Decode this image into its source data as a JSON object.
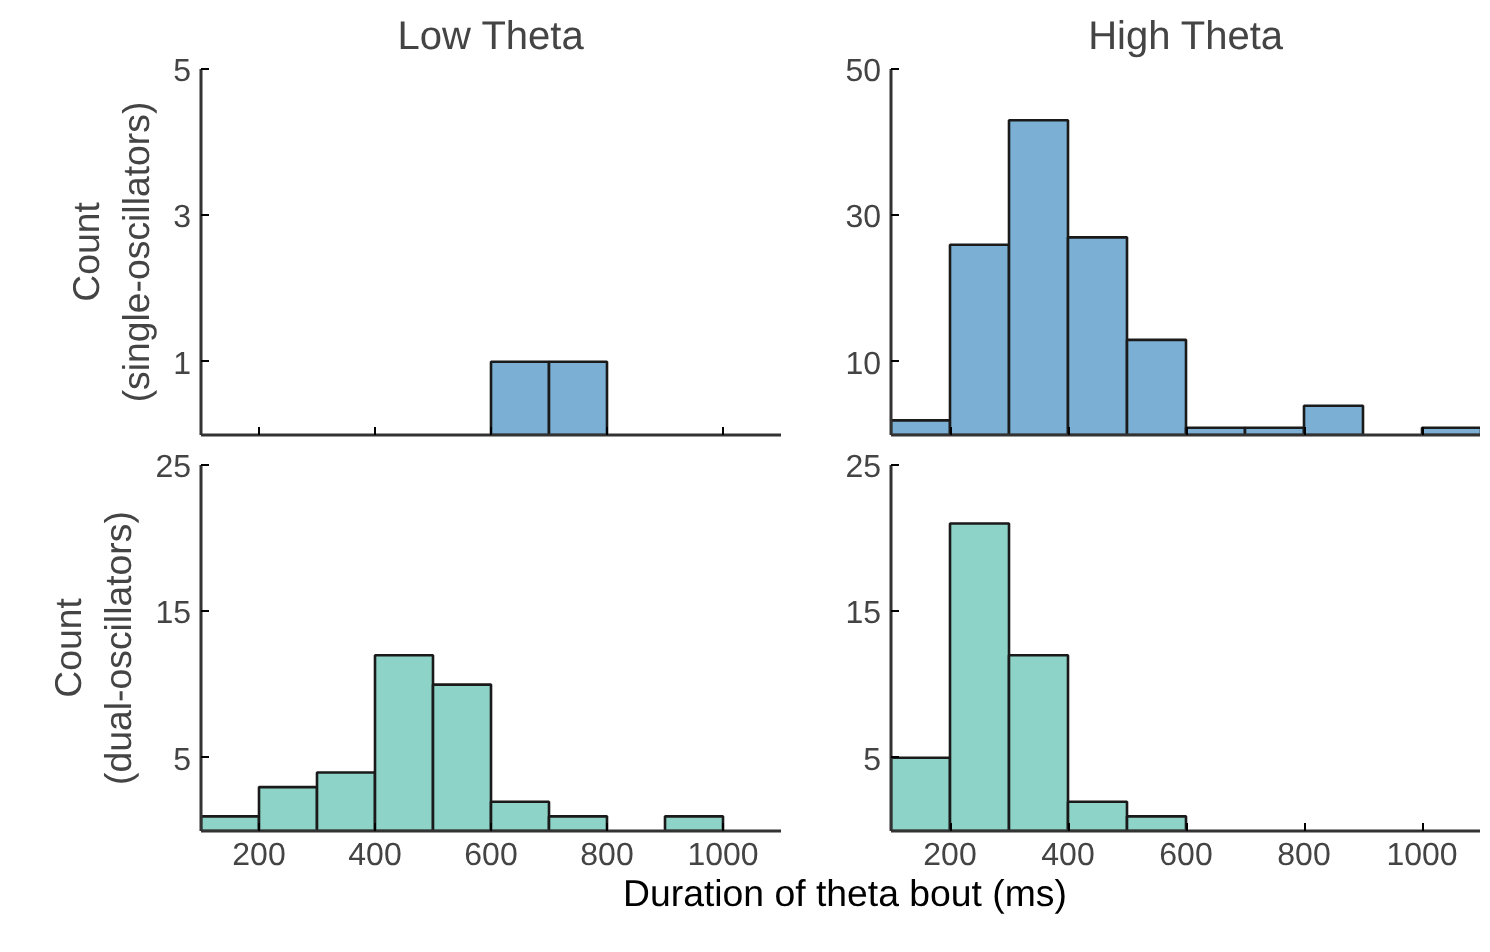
{
  "chart_data": [
    {
      "type": "histogram",
      "title": "Low Theta",
      "ylabel": "Count\n(single-oscillators)",
      "bins": [
        100,
        200,
        300,
        400,
        500,
        600,
        700,
        800,
        900,
        1000,
        1100
      ],
      "values": [
        0,
        0,
        0,
        0,
        0,
        1,
        1,
        0,
        0,
        0
      ],
      "color": "#7bafd4",
      "xlim": [
        100,
        1100
      ],
      "xticks": [
        200,
        400,
        600,
        800,
        1000
      ],
      "ylim": [
        0,
        5
      ],
      "yticks": [
        1,
        3,
        5
      ],
      "tick_labels": "y",
      "grid": false
    },
    {
      "type": "histogram",
      "title": "High Theta",
      "bins": [
        100,
        200,
        300,
        400,
        500,
        600,
        700,
        800,
        900,
        1000,
        1100
      ],
      "values": [
        2,
        26,
        43,
        27,
        13,
        1,
        1,
        4,
        0,
        1
      ],
      "color": "#7bafd4",
      "xlim": [
        100,
        1100
      ],
      "xticks": [
        200,
        400,
        600,
        800,
        1000
      ],
      "ylim": [
        0,
        50
      ],
      "yticks": [
        10,
        30,
        50
      ],
      "tick_labels": "y",
      "grid": false
    },
    {
      "type": "histogram",
      "ylabel": "Count\n(dual-oscillators)",
      "xlabel": "Duration of theta bout (ms)",
      "bins": [
        100,
        200,
        300,
        400,
        500,
        600,
        700,
        800,
        900,
        1000,
        1100
      ],
      "values": [
        1,
        3,
        4,
        12,
        10,
        2,
        1,
        0,
        1,
        0
      ],
      "color": "#8dd3c7",
      "xlim": [
        100,
        1100
      ],
      "xticks": [
        200,
        400,
        600,
        800,
        1000
      ],
      "ylim": [
        0,
        25
      ],
      "yticks": [
        5,
        15,
        25
      ],
      "grid": false
    },
    {
      "type": "histogram",
      "bins": [
        100,
        200,
        300,
        400,
        500,
        600,
        700,
        800,
        900,
        1000,
        1100
      ],
      "values": [
        5,
        21,
        12,
        2,
        1,
        0,
        0,
        0,
        0,
        0
      ],
      "color": "#8dd3c7",
      "xlim": [
        100,
        1100
      ],
      "xticks": [
        200,
        400,
        600,
        800,
        1000
      ],
      "ylim": [
        0,
        25
      ],
      "yticks": [
        5,
        15,
        25
      ],
      "grid": false
    }
  ]
}
